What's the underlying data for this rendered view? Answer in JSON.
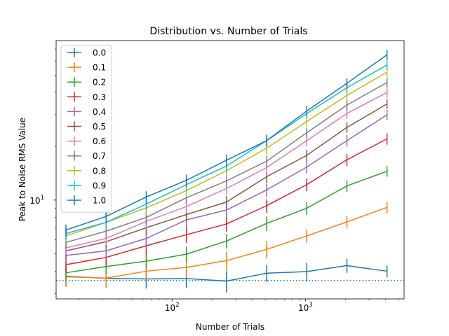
{
  "chart_data": {
    "type": "line",
    "title": "Distribution vs. Number of Trials",
    "xlabel": "Number of Trials",
    "ylabel": "Peak to Noise RMS Value",
    "xscale": "log",
    "yscale": "log",
    "xlim": [
      13.5,
      5500
    ],
    "ylim": [
      2.8,
      78
    ],
    "x_tick_labels": [
      {
        "value": 100,
        "base": "10",
        "exp": "2"
      },
      {
        "value": 1000,
        "base": "10",
        "exp": "3"
      }
    ],
    "y_tick_labels": [
      {
        "value": 10,
        "base": "10",
        "exp": "1"
      }
    ],
    "grid": false,
    "legend_position": "upper-left",
    "error_bars": true,
    "reference_line": {
      "y": 3.55,
      "style": "dotted",
      "color": "#1f77b4"
    },
    "x": [
      16,
      32,
      64,
      128,
      256,
      512,
      1024,
      2048,
      4096
    ],
    "series": [
      {
        "name": "0.0",
        "color": "#1f77b4",
        "values": [
          3.75,
          3.65,
          3.62,
          3.64,
          3.52,
          3.9,
          3.98,
          4.3,
          4.0
        ],
        "errors": [
          0.45,
          0.42,
          0.42,
          0.42,
          0.48,
          0.42,
          0.48,
          0.38,
          0.3
        ]
      },
      {
        "name": "0.1",
        "color": "#ff7f0e",
        "values": [
          3.72,
          3.66,
          4.0,
          4.2,
          4.58,
          5.3,
          6.3,
          7.55,
          9.1
        ],
        "errors": [
          0.45,
          0.42,
          0.42,
          0.5,
          0.55,
          0.6,
          0.55,
          0.6,
          0.7
        ]
      },
      {
        "name": "0.2",
        "color": "#2ca02c",
        "values": [
          3.92,
          4.25,
          4.55,
          4.98,
          5.9,
          7.4,
          9.0,
          12.0,
          14.5
        ],
        "errors": [
          0.4,
          0.4,
          0.45,
          0.5,
          0.55,
          0.7,
          0.75,
          0.9,
          1.0
        ]
      },
      {
        "name": "0.3",
        "color": "#d62728",
        "values": [
          4.35,
          4.78,
          5.55,
          6.4,
          7.35,
          9.3,
          12.2,
          16.8,
          22.0
        ],
        "errors": [
          0.4,
          0.5,
          0.6,
          0.65,
          0.7,
          0.8,
          1.0,
          1.3,
          1.6
        ]
      },
      {
        "name": "0.4",
        "color": "#9467bd",
        "values": [
          4.9,
          5.2,
          6.1,
          7.75,
          8.8,
          11.4,
          15.3,
          21.5,
          30.0
        ],
        "errors": [
          0.4,
          0.5,
          0.6,
          0.7,
          0.8,
          1.0,
          1.2,
          1.6,
          2.0
        ]
      },
      {
        "name": "0.5",
        "color": "#8c564b",
        "values": [
          5.2,
          5.85,
          7.0,
          8.3,
          9.75,
          13.5,
          17.8,
          25.5,
          34.5
        ],
        "errors": [
          0.45,
          0.5,
          0.6,
          0.7,
          0.8,
          1.0,
          1.3,
          1.7,
          2.2
        ]
      },
      {
        "name": "0.6",
        "color": "#e377c2",
        "values": [
          5.4,
          6.1,
          7.6,
          9.2,
          11.6,
          15.2,
          21.5,
          30.5,
          40.0
        ],
        "errors": [
          0.45,
          0.5,
          0.65,
          0.75,
          0.9,
          1.1,
          1.5,
          2.0,
          2.6
        ]
      },
      {
        "name": "0.7",
        "color": "#7f7f7f",
        "values": [
          5.8,
          6.7,
          8.0,
          10.3,
          12.8,
          16.5,
          23.8,
          34.0,
          45.5
        ],
        "errors": [
          0.45,
          0.55,
          0.7,
          0.8,
          1.0,
          1.2,
          1.6,
          2.2,
          2.8
        ]
      },
      {
        "name": "0.8",
        "color": "#bcbd22",
        "values": [
          6.3,
          7.5,
          9.05,
          11.3,
          14.6,
          19.5,
          27.5,
          38.5,
          52.0
        ],
        "errors": [
          0.5,
          0.6,
          0.75,
          0.9,
          1.1,
          1.4,
          1.8,
          2.5,
          3.2
        ]
      },
      {
        "name": "0.9",
        "color": "#17becf",
        "values": [
          6.5,
          7.5,
          9.5,
          12.2,
          15.5,
          21.5,
          30.5,
          42.5,
          57.0
        ],
        "errors": [
          0.5,
          0.6,
          0.75,
          0.95,
          1.2,
          1.5,
          2.0,
          2.7,
          3.5
        ]
      },
      {
        "name": "1.0",
        "color": "#1f77b4",
        "values": [
          6.8,
          8.1,
          10.4,
          12.9,
          16.7,
          21.5,
          31.5,
          45.0,
          65.0
        ],
        "errors": [
          0.5,
          0.65,
          0.8,
          1.0,
          1.3,
          1.6,
          2.2,
          3.0,
          4.2
        ]
      }
    ]
  }
}
